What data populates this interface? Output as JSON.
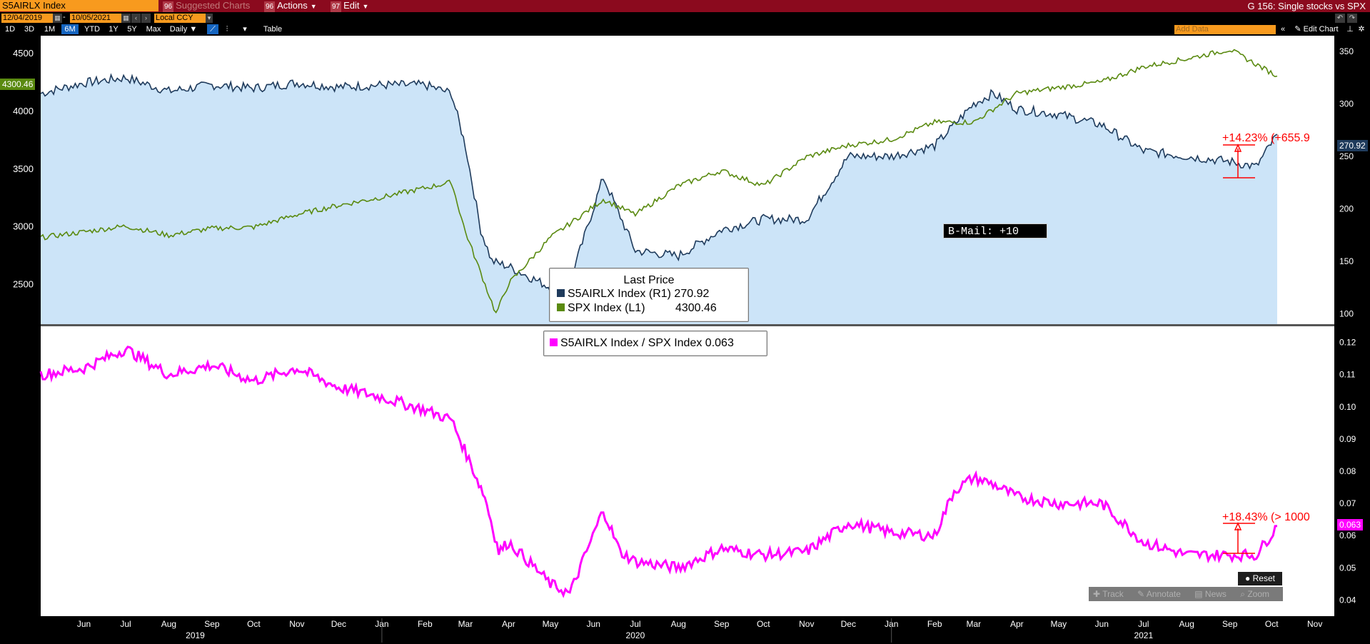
{
  "header": {
    "ticker": "S5AIRLX Index",
    "suggested_num": "96",
    "suggested": "Suggested Charts",
    "actions_num": "96",
    "actions": "Actions",
    "edit_num": "97",
    "edit": "Edit",
    "title": "G 156: Single stocks vs SPX"
  },
  "range": {
    "start": "12/04/2019",
    "end": "10/05/2021",
    "currency": "Local CCY"
  },
  "toolbar": {
    "ranges": [
      "1D",
      "3D",
      "1M",
      "6M",
      "YTD",
      "1Y",
      "5Y",
      "Max"
    ],
    "active_range": "6M",
    "frequency": "Daily",
    "table": "Table",
    "add_data": "Add Data",
    "edit_chart": "Edit Chart"
  },
  "colors": {
    "airline": "#1f3b5c",
    "spx": "#5a8a10",
    "ratio": "#ff00ff",
    "area": "#cce4f8",
    "annotation": "#ff0000"
  },
  "legend_top": {
    "title": "Last Price",
    "rows": [
      {
        "name": "S5AIRLX Index",
        "axis": "(R1)",
        "value": "270.92"
      },
      {
        "name": "SPX Index",
        "axis": "(L1)",
        "value": "4300.46"
      }
    ]
  },
  "legend_bottom": {
    "name": "S5AIRLX Index / SPX Index",
    "value": "0.063"
  },
  "bmail": "B-Mail: +10",
  "annotations": {
    "top": "+14.23% (+655.9",
    "bottom": "+18.43% (> 1000"
  },
  "badges": {
    "spx_last": "4300.46",
    "air_last": "270.92",
    "ratio_last": "0.063"
  },
  "buttons": {
    "reset": "Reset",
    "tools": [
      "Track",
      "Annotate",
      "News",
      "Zoom"
    ]
  },
  "chart_data": [
    {
      "type": "line",
      "series": [
        {
          "name": "S5AIRLX Index",
          "axis": "right",
          "x": [
            "2019-05-01",
            "2019-06-01",
            "2019-07-01",
            "2019-08-01",
            "2019-09-01",
            "2019-10-01",
            "2019-11-01",
            "2019-12-01",
            "2020-01-01",
            "2020-02-01",
            "2020-02-20",
            "2020-03-01",
            "2020-03-12",
            "2020-03-20",
            "2020-04-01",
            "2020-05-01",
            "2020-05-15",
            "2020-06-08",
            "2020-07-01",
            "2020-08-01",
            "2020-09-01",
            "2020-10-01",
            "2020-11-01",
            "2020-12-01",
            "2021-01-01",
            "2021-02-01",
            "2021-03-01",
            "2021-03-15",
            "2021-04-01",
            "2021-05-01",
            "2021-06-01",
            "2021-07-01",
            "2021-08-01",
            "2021-09-01",
            "2021-09-20",
            "2021-10-05"
          ],
          "values": [
            310,
            320,
            325,
            312,
            318,
            315,
            320,
            316,
            318,
            318,
            310,
            260,
            180,
            150,
            145,
            125,
            130,
            230,
            160,
            155,
            180,
            190,
            190,
            250,
            250,
            260,
            300,
            310,
            295,
            290,
            280,
            255,
            250,
            245,
            240,
            271
          ]
        },
        {
          "name": "SPX Index",
          "axis": "left",
          "x": [
            "2019-05-01",
            "2019-06-01",
            "2019-07-01",
            "2019-08-01",
            "2019-09-01",
            "2019-10-01",
            "2019-11-01",
            "2019-12-01",
            "2020-01-01",
            "2020-02-01",
            "2020-02-20",
            "2020-03-01",
            "2020-03-23",
            "2020-04-01",
            "2020-05-01",
            "2020-06-08",
            "2020-07-01",
            "2020-08-01",
            "2020-09-01",
            "2020-10-01",
            "2020-11-01",
            "2020-12-01",
            "2021-01-01",
            "2021-02-01",
            "2021-03-01",
            "2021-04-01",
            "2021-05-01",
            "2021-06-01",
            "2021-07-01",
            "2021-08-01",
            "2021-09-01",
            "2021-10-05"
          ],
          "values": [
            2900,
            2950,
            3000,
            2920,
            2980,
            2990,
            3100,
            3180,
            3250,
            3330,
            3380,
            2950,
            2240,
            2500,
            2900,
            3230,
            3100,
            3350,
            3480,
            3350,
            3600,
            3700,
            3750,
            3900,
            3900,
            4150,
            4200,
            4250,
            4380,
            4450,
            4530,
            4300
          ]
        }
      ],
      "left_axis": {
        "ticks": [
          2500,
          3000,
          3500,
          4000,
          4500
        ]
      },
      "right_axis": {
        "ticks": [
          100,
          150,
          200,
          250,
          300,
          350
        ]
      },
      "x_ticks": [
        "Jun",
        "Jul",
        "Aug",
        "Sep",
        "Oct",
        "Nov",
        "Dec",
        "Jan",
        "Feb",
        "Mar",
        "Apr",
        "May",
        "Jun",
        "Jul",
        "Aug",
        "Sep",
        "Oct",
        "Nov",
        "Dec",
        "Jan",
        "Feb",
        "Mar",
        "Apr",
        "May",
        "Jun",
        "Jul",
        "Aug",
        "Sep",
        "Oct",
        "Nov"
      ],
      "year_labels": [
        "2019",
        "2020",
        "2021"
      ]
    },
    {
      "type": "line",
      "series": [
        {
          "name": "S5AIRLX Index / SPX Index",
          "x": [
            "2019-05-01",
            "2019-06-01",
            "2019-07-01",
            "2019-08-01",
            "2019-09-01",
            "2019-10-01",
            "2019-11-01",
            "2019-12-01",
            "2020-01-01",
            "2020-02-01",
            "2020-02-20",
            "2020-03-05",
            "2020-03-15",
            "2020-03-25",
            "2020-04-01",
            "2020-04-20",
            "2020-05-01",
            "2020-05-15",
            "2020-06-08",
            "2020-06-20",
            "2020-07-01",
            "2020-08-01",
            "2020-09-01",
            "2020-10-01",
            "2020-11-01",
            "2020-12-01",
            "2021-01-01",
            "2021-02-01",
            "2021-02-15",
            "2021-03-01",
            "2021-03-15",
            "2021-04-01",
            "2021-05-01",
            "2021-06-01",
            "2021-07-01",
            "2021-08-01",
            "2021-09-01",
            "2021-09-20",
            "2021-10-05"
          ],
          "values": [
            0.11,
            0.112,
            0.118,
            0.11,
            0.113,
            0.108,
            0.112,
            0.106,
            0.103,
            0.099,
            0.096,
            0.082,
            0.072,
            0.055,
            0.058,
            0.05,
            0.045,
            0.042,
            0.068,
            0.055,
            0.052,
            0.05,
            0.056,
            0.054,
            0.055,
            0.064,
            0.061,
            0.06,
            0.074,
            0.078,
            0.076,
            0.072,
            0.07,
            0.07,
            0.058,
            0.054,
            0.054,
            0.054,
            0.063
          ]
        }
      ],
      "right_axis": {
        "ticks": [
          0.04,
          0.05,
          0.06,
          0.07,
          0.08,
          0.09,
          0.1,
          0.11,
          0.12
        ]
      }
    }
  ]
}
